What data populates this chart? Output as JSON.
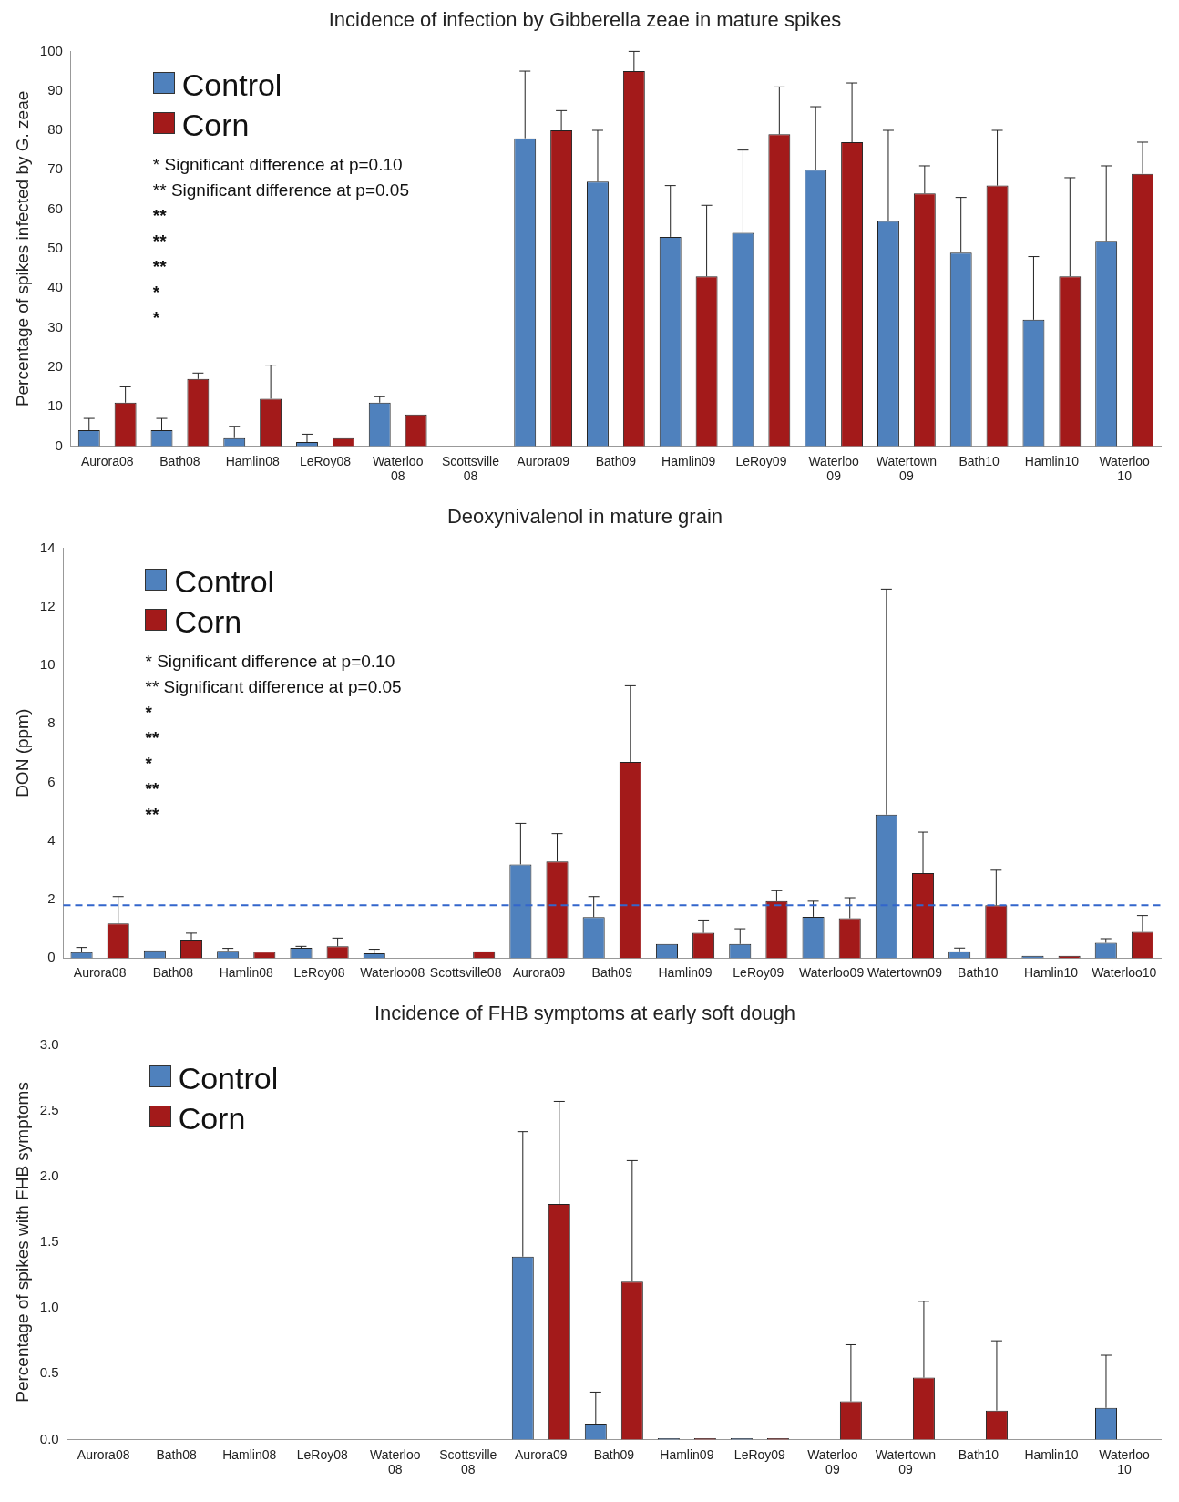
{
  "chart_data": [
    {
      "type": "bar",
      "title": "Incidence of infection by Gibberella zeae in mature spikes",
      "ylabel": "Percentage of spikes infected by G. zeae",
      "categories": [
        "Aurora08",
        "Bath08",
        "Hamlin08",
        "LeRoy08",
        "Waterloo 08",
        "Scottsville 08",
        "Aurora09",
        "Bath09",
        "Hamlin09",
        "LeRoy09",
        "Waterloo 09",
        "Watertown 09",
        "Bath10",
        "Hamlin10",
        "Waterloo 10"
      ],
      "series": [
        {
          "name": "Control",
          "color": "#4f81bd",
          "values": [
            4,
            4,
            2,
            1,
            11,
            0,
            78,
            67,
            53,
            54,
            70,
            57,
            49,
            32,
            52
          ],
          "errors": [
            [
              4,
              7
            ],
            [
              4,
              7
            ],
            [
              2,
              5
            ],
            [
              1,
              3
            ],
            [
              11,
              12.5
            ],
            null,
            [
              78,
              95
            ],
            [
              67,
              80
            ],
            [
              53,
              66
            ],
            [
              54,
              75
            ],
            [
              70,
              86
            ],
            [
              57,
              80
            ],
            [
              49,
              63
            ],
            [
              32,
              48
            ],
            [
              52,
              71
            ]
          ]
        },
        {
          "name": "Corn",
          "color": "#a31a1a",
          "values": [
            11,
            17,
            12,
            2,
            8,
            0,
            80,
            95,
            43,
            79,
            77,
            64,
            66,
            43,
            69
          ],
          "errors": [
            [
              11,
              15
            ],
            [
              17,
              18.5
            ],
            [
              12,
              20.5
            ],
            null,
            null,
            null,
            [
              80,
              85
            ],
            [
              95,
              100
            ],
            [
              43,
              61
            ],
            [
              79,
              91
            ],
            [
              77,
              92
            ],
            [
              64,
              71
            ],
            [
              66,
              80
            ],
            [
              43,
              68
            ],
            [
              69,
              77
            ]
          ]
        }
      ],
      "ylim": [
        0,
        100
      ],
      "yticks": [
        0,
        10,
        20,
        30,
        40,
        50,
        60,
        70,
        80,
        90,
        100
      ],
      "grid": false,
      "legend": "top left",
      "annotations": [
        "* Significant difference at p=0.10",
        "** Significant difference at p=0.05",
        "**",
        "**",
        "**",
        "*",
        "*"
      ]
    },
    {
      "type": "bar",
      "title": "Deoxynivalenol in mature grain",
      "ylabel": "DON (ppm)",
      "categories": [
        "Aurora08",
        "Bath08",
        "Hamlin08",
        "LeRoy08",
        "Waterloo08",
        "Scottsville08",
        "Aurora09",
        "Bath09",
        "Hamlin09",
        "LeRoy09",
        "Waterloo09",
        "Watertown09",
        "Bath10",
        "Hamlin10",
        "Waterloo10"
      ],
      "series": [
        {
          "name": "Control",
          "color": "#4f81bd",
          "values": [
            0.2,
            0.26,
            0.25,
            0.35,
            0.16,
            0,
            3.2,
            1.4,
            0.48,
            0.48,
            1.41,
            4.9,
            0.23,
            0.08,
            0.52
          ],
          "errors": [
            [
              0.2,
              0.36
            ],
            null,
            [
              0.25,
              0.33
            ],
            [
              0.35,
              0.4
            ],
            [
              0.16,
              0.3
            ],
            null,
            [
              3.2,
              4.6
            ],
            [
              1.4,
              2.1
            ],
            null,
            [
              0.48,
              1.0
            ],
            [
              1.41,
              1.94
            ],
            [
              4.9,
              12.6
            ],
            [
              0.23,
              0.34
            ],
            null,
            [
              0.52,
              0.66
            ]
          ]
        },
        {
          "name": "Corn",
          "color": "#a31a1a",
          "values": [
            1.18,
            0.63,
            0.22,
            0.4,
            0,
            0.23,
            3.3,
            6.7,
            0.86,
            1.94,
            1.36,
            2.9,
            1.8,
            0.08,
            0.89
          ],
          "errors": [
            [
              1.18,
              2.1
            ],
            [
              0.63,
              0.85
            ],
            null,
            [
              0.4,
              0.68
            ],
            null,
            null,
            [
              3.3,
              4.25
            ],
            [
              6.7,
              9.3
            ],
            [
              0.86,
              1.3
            ],
            [
              1.94,
              2.3
            ],
            [
              1.36,
              2.06
            ],
            [
              2.9,
              4.3
            ],
            [
              1.8,
              3.0
            ],
            null,
            [
              0.89,
              1.45
            ]
          ]
        }
      ],
      "ylim": [
        0,
        14
      ],
      "yticks": [
        0,
        2,
        4,
        6,
        8,
        10,
        12,
        14
      ],
      "grid": false,
      "legend": "top left",
      "ref_lines": [
        {
          "axis": "y",
          "value": 1.8,
          "color": "#3366cc",
          "line_style": "dashed"
        }
      ],
      "annotations": [
        "* Significant difference at p=0.10",
        "** Significant difference at p=0.05",
        "*",
        "**",
        "*",
        "**",
        "**"
      ]
    },
    {
      "type": "bar",
      "title": "Incidence of FHB symptoms at early soft dough",
      "ylabel": "Percentage of spikes with FHB symptoms",
      "categories": [
        "Aurora08",
        "Bath08",
        "Hamlin08",
        "LeRoy08",
        "Waterloo 08",
        "Scottsville 08",
        "Aurora09",
        "Bath09",
        "Hamlin09",
        "LeRoy09",
        "Waterloo 09",
        "Watertown 09",
        "Bath10",
        "Hamlin10",
        "Waterloo 10"
      ],
      "series": [
        {
          "name": "Control",
          "color": "#4f81bd",
          "values": [
            0,
            0,
            0,
            0,
            0,
            0,
            1.39,
            0.12,
            0.01,
            0.01,
            0,
            0,
            0,
            0,
            0.24
          ],
          "errors": [
            null,
            null,
            null,
            null,
            null,
            null,
            [
              1.39,
              2.34
            ],
            [
              0.12,
              0.36
            ],
            null,
            null,
            null,
            null,
            null,
            null,
            [
              0.24,
              0.64
            ]
          ]
        },
        {
          "name": "Corn",
          "color": "#a31a1a",
          "values": [
            0,
            0,
            0,
            0,
            0,
            0,
            1.79,
            1.2,
            0.01,
            0.01,
            0.29,
            0.47,
            0.22,
            0,
            0
          ],
          "errors": [
            null,
            null,
            null,
            null,
            null,
            null,
            [
              1.79,
              2.57
            ],
            [
              1.2,
              2.12
            ],
            null,
            null,
            [
              0.29,
              0.72
            ],
            [
              0.47,
              1.05
            ],
            [
              0.22,
              0.75
            ],
            null,
            null
          ]
        }
      ],
      "ylim": [
        0,
        3
      ],
      "yticks": [
        {
          "value": 0,
          "label": "0.0"
        },
        {
          "value": 0.5,
          "label": "0.5"
        },
        {
          "value": 1,
          "label": "1.0"
        },
        {
          "value": 1.5,
          "label": "1.5"
        },
        {
          "value": 2,
          "label": "2.0"
        },
        {
          "value": 2.5,
          "label": "2.5"
        },
        {
          "value": 3,
          "label": "3.0"
        }
      ],
      "grid": false,
      "legend": "top left"
    }
  ]
}
